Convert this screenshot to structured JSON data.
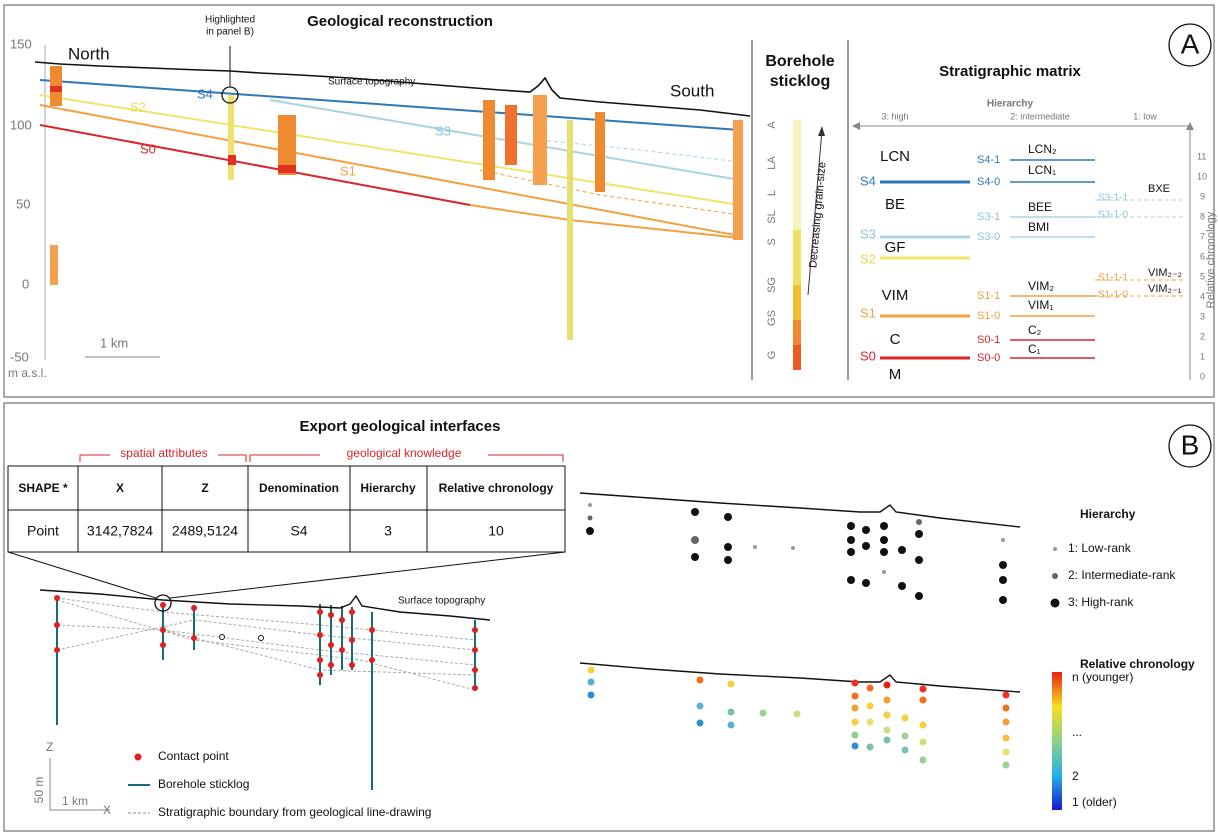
{
  "panel_a": {
    "label": "A",
    "title": "Geological reconstruction",
    "section": {
      "y_labels": [
        "150",
        "100",
        "50",
        "0",
        "-50"
      ],
      "unit": "m a.s.l.",
      "north": "North",
      "south": "South",
      "highlight": [
        "Highlighted",
        "in panel B)"
      ],
      "topography": "Surface topography",
      "surfaces": [
        "S4",
        "S3",
        "S2",
        "S1",
        "S0"
      ],
      "scale": "1 km"
    },
    "sticklog": {
      "title": [
        "Borehole",
        "sticklog"
      ],
      "grain_sizes": [
        "A",
        "LA",
        "L",
        "SL",
        "S",
        "SG",
        "GS",
        "G"
      ],
      "arrow_label": "Decreasing grain-size"
    },
    "matrix": {
      "title": "Stratigraphic matrix",
      "hierarchy_title": "Hierarchy",
      "hierarchy_levels": [
        "3: high",
        "2: intermediate",
        "1: low"
      ],
      "chronology_title": "Relative chronology",
      "chronology_ticks": [
        "0",
        "1",
        "2",
        "3",
        "4",
        "5",
        "6",
        "7",
        "8",
        "9",
        "10",
        "11"
      ],
      "units_high": [
        "LCN",
        "BE",
        "GF",
        "VIM",
        "C",
        "M"
      ],
      "surfaces_high": [
        "S4",
        "S3",
        "S2",
        "S1",
        "S0"
      ],
      "surfaces_mid": [
        "S4-1",
        "S4-0",
        "S3-1",
        "S3-0",
        "S1-1",
        "S1-0",
        "S0-1",
        "S0-0"
      ],
      "units_mid": [
        "LCN₂",
        "LCN₁",
        "BEE",
        "BMI",
        "VIM₂",
        "VIM₁",
        "C₂",
        "C₁"
      ],
      "surfaces_low": [
        "S3-1-1",
        "S3-1-0",
        "S1-1-1",
        "S1-1-0"
      ],
      "units_low": [
        "BXE",
        "VIM₂₋₂",
        "VIM₂₋₁"
      ]
    }
  },
  "panel_b": {
    "label": "B",
    "title": "Export geological interfaces",
    "groups": [
      "spatial attributes",
      "geological knowledge"
    ],
    "table": {
      "header": [
        "SHAPE *",
        "X",
        "Z",
        "Denomination",
        "Hierarchy",
        "Relative chronology"
      ],
      "rows": [
        [
          "Point",
          "3142,7824",
          "2489,5124",
          "S4",
          "3",
          "10"
        ]
      ]
    },
    "topography": "Surface topography",
    "legend": [
      "Contact point",
      "Borehole sticklog",
      "Stratigraphic boundary from geological line-drawing"
    ],
    "scale": {
      "z": "Z",
      "vertical": "50 m",
      "horizontal": "1 km",
      "x": "X"
    },
    "hierarchy": {
      "title": "Hierarchy",
      "items": [
        "1: Low-rank",
        "2: Intermediate-rank",
        "3: High-rank"
      ]
    },
    "chronology": {
      "title": "Relative chronology",
      "items": [
        "n (younger)",
        "...",
        "2",
        "1 (older)"
      ]
    }
  }
}
